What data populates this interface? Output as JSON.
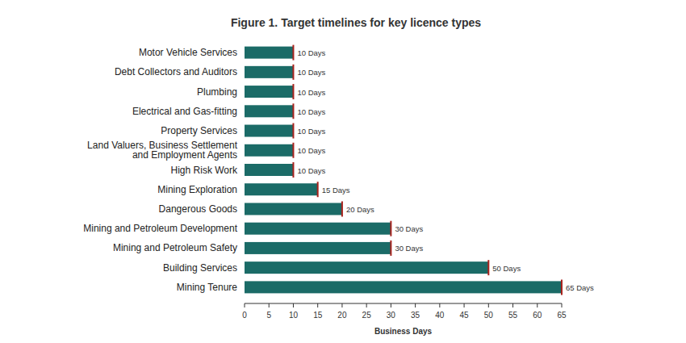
{
  "chart_data": {
    "type": "bar",
    "orientation": "horizontal",
    "title": "Figure 1. Target timelines for key licence types",
    "categories": [
      "Motor Vehicle Services",
      "Debt Collectors and Auditors",
      "Plumbing",
      "Electrical and Gas-fitting",
      "Property Services",
      "Land Valuers, Business Settlement and Employment Agents",
      "High Risk Work",
      "Mining Exploration",
      "Dangerous Goods",
      "Mining and Petroleum Development",
      "Mining and Petroleum Safety",
      "Building Services",
      "Mining Tenure"
    ],
    "values": [
      10,
      10,
      10,
      10,
      10,
      10,
      10,
      15,
      20,
      30,
      30,
      50,
      65
    ],
    "value_labels": [
      "10 Days",
      "10 Days",
      "10 Days",
      "10 Days",
      "10 Days",
      "10 Days",
      "10 Days",
      "15 Days",
      "20 Days",
      "30 Days",
      "30 Days",
      "50 Days",
      "65 Days"
    ],
    "color": "#1b6b67",
    "xlim": [
      0,
      65
    ],
    "xticks": [
      0,
      5,
      10,
      15,
      20,
      25,
      30,
      35,
      40,
      45,
      50,
      55,
      60,
      65
    ],
    "x_label": "Business Days",
    "data_labels": true,
    "grid": false
  }
}
